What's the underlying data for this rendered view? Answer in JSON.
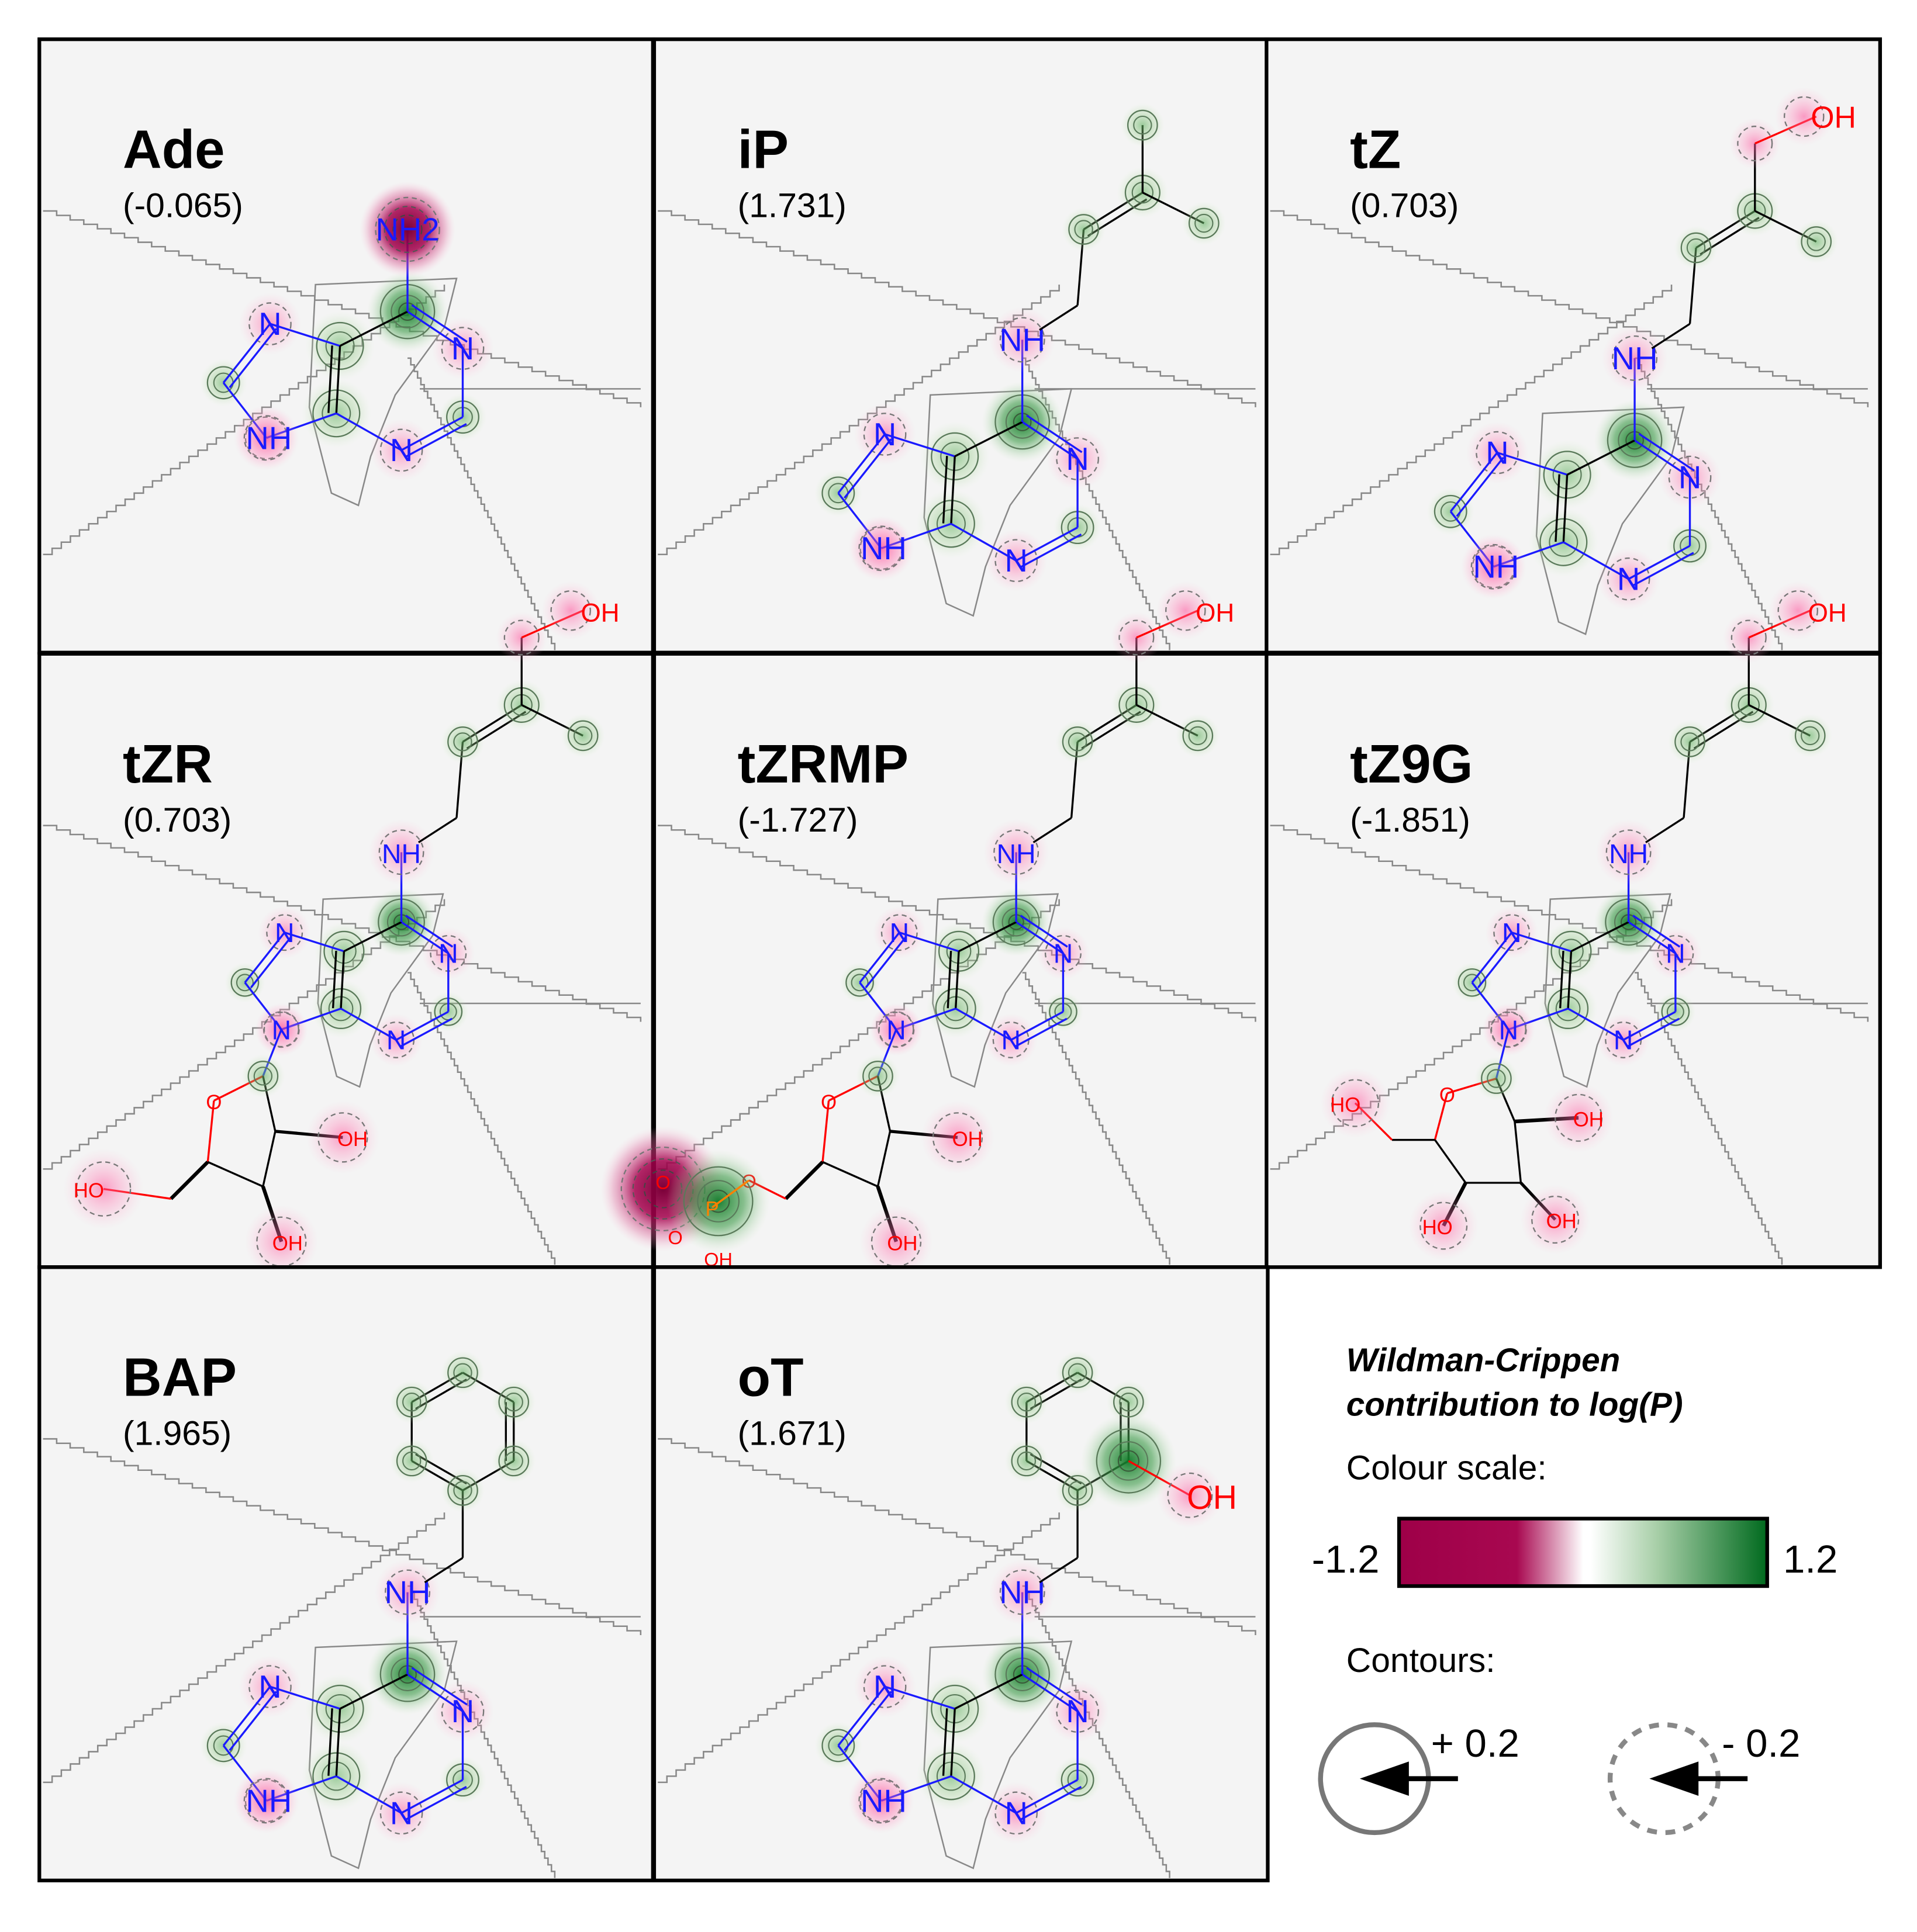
{
  "panels": [
    {
      "name": "Ade",
      "value": "(-0.065)",
      "mol": "purine",
      "sub": "NH2"
    },
    {
      "name": "iP",
      "value": "(1.731)",
      "mol": "purine",
      "sub": "ip"
    },
    {
      "name": "tZ",
      "value": "(0.703)",
      "mol": "purine",
      "sub": "tz"
    },
    {
      "name": "tZR",
      "value": "(0.703)",
      "mol": "riboside",
      "sub": "tz"
    },
    {
      "name": "tZRMP",
      "value": "(-1.727)",
      "mol": "ribotide",
      "sub": "tz"
    },
    {
      "name": "tZ9G",
      "value": "(-1.851)",
      "mol": "glucoside",
      "sub": "tz"
    },
    {
      "name": "BAP",
      "value": "(1.965)",
      "mol": "purine",
      "sub": "benzyl"
    },
    {
      "name": "oT",
      "value": "(1.671)",
      "mol": "purine",
      "sub": "ohbenzyl"
    }
  ],
  "legend": {
    "title_line1": "Wildman-Crippen",
    "title_line2": "contribution to log(P)",
    "colour_scale_label": "Colour scale:",
    "scale_min": "-1.2",
    "scale_max": "1.2",
    "contours_label": "Contours:",
    "positive_label": "+ 0.2",
    "negative_label": "- 0.2"
  },
  "atom_labels": {
    "N": "N",
    "NH": "NH",
    "NH2": "NH2",
    "OH": "OH",
    "HO": "HO",
    "O": "O",
    "P": "P"
  },
  "colors": {
    "negative": "#a0004a",
    "positive": "#006a20",
    "nitrogen": "#1a1aff",
    "oxygen": "#ff0000",
    "phosphorus": "#ff8000",
    "panel_bg": "#f4f4f4"
  }
}
